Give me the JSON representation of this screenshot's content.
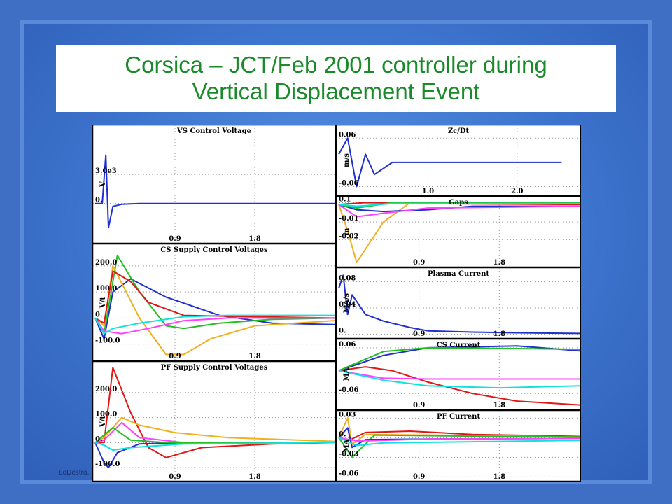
{
  "slide": {
    "title_line1": "Corsica – JCT/Feb 2001 controller during",
    "title_line2": "Vertical Displacement Event",
    "footer": "LoDestro,",
    "colors": {
      "background": "#3f6fc4",
      "title": "#1a8a2a"
    }
  },
  "chart_data": [
    {
      "type": "line",
      "title": "VS Control Voltage",
      "ylabel": "V",
      "xticks": [
        "0.9",
        "1.8"
      ],
      "yticks": [
        "3.0e3",
        "0."
      ],
      "series": [
        {
          "color": "#1f2fd0",
          "x": [
            0,
            0.08,
            0.12,
            0.15,
            0.2,
            0.3,
            0.5,
            1.0,
            2.7
          ],
          "y": [
            0,
            0,
            5000,
            -2500,
            -300,
            -80,
            0,
            0,
            0
          ]
        }
      ]
    },
    {
      "type": "line",
      "title": "CS Supply Control Voltages",
      "ylabel": "V/t",
      "xticks": [
        "0.9",
        "1.8"
      ],
      "yticks": [
        "200.0",
        "100.0",
        "0.",
        "-100.0"
      ],
      "series": [
        {
          "color": "#1f2fd0",
          "x": [
            0,
            0.1,
            0.2,
            0.4,
            0.8,
            1.4,
            2.0,
            2.7
          ],
          "y": [
            0,
            -80,
            100,
            150,
            80,
            10,
            -20,
            -25
          ]
        },
        {
          "color": "#22c022",
          "x": [
            0,
            0.1,
            0.25,
            0.5,
            0.8,
            1.0,
            1.4,
            2.0,
            2.7
          ],
          "y": [
            0,
            -60,
            240,
            100,
            -30,
            -40,
            -20,
            -5,
            0
          ]
        },
        {
          "color": "#f0b020",
          "x": [
            0,
            0.1,
            0.2,
            0.5,
            0.8,
            1.0,
            1.3,
            1.8,
            2.7
          ],
          "y": [
            0,
            -30,
            200,
            0,
            -140,
            -140,
            -80,
            -30,
            -10
          ]
        },
        {
          "color": "#e01818",
          "x": [
            0,
            0.1,
            0.2,
            0.4,
            0.6,
            1.0,
            2.7
          ],
          "y": [
            0,
            -20,
            180,
            140,
            60,
            10,
            0
          ]
        },
        {
          "color": "#ff40ff",
          "x": [
            0,
            0.1,
            0.3,
            0.6,
            1.0,
            1.5,
            2.7
          ],
          "y": [
            0,
            -50,
            -60,
            -40,
            -10,
            0,
            0
          ]
        },
        {
          "color": "#10e0e0",
          "x": [
            0,
            0.1,
            0.2,
            0.5,
            1.0,
            1.5,
            2.7
          ],
          "y": [
            0,
            -60,
            -40,
            -20,
            5,
            10,
            10
          ]
        }
      ]
    },
    {
      "type": "line",
      "title": "PF Supply Control Voltages",
      "ylabel": "V/t",
      "xticks": [
        "0.9",
        "1.8"
      ],
      "yticks": [
        "200.0",
        "100.0",
        "0.",
        "-100.0"
      ],
      "series": [
        {
          "color": "#e01818",
          "x": [
            0,
            0.1,
            0.2,
            0.4,
            0.6,
            0.8,
            1.2,
            2.0,
            2.7
          ],
          "y": [
            0,
            0,
            300,
            120,
            -20,
            -60,
            -20,
            -5,
            0
          ]
        },
        {
          "color": "#f0b020",
          "x": [
            0,
            0.1,
            0.3,
            0.5,
            0.9,
            1.5,
            2.7
          ],
          "y": [
            0,
            20,
            100,
            70,
            40,
            20,
            5
          ]
        },
        {
          "color": "#ff40ff",
          "x": [
            0,
            0.1,
            0.3,
            0.5,
            1.0,
            2.7
          ],
          "y": [
            0,
            10,
            80,
            20,
            0,
            0
          ]
        },
        {
          "color": "#1f2fd0",
          "x": [
            0,
            0.1,
            0.15,
            0.25,
            0.5,
            1.0,
            2.7
          ],
          "y": [
            0,
            -80,
            -100,
            -40,
            -5,
            0,
            0
          ]
        },
        {
          "color": "#22c022",
          "x": [
            0,
            0.1,
            0.2,
            0.4,
            0.8,
            1.5,
            2.7
          ],
          "y": [
            0,
            30,
            60,
            10,
            0,
            0,
            0
          ]
        },
        {
          "color": "#10e0e0",
          "x": [
            0,
            0.1,
            0.2,
            0.4,
            1.0,
            2.7
          ],
          "y": [
            0,
            -10,
            -30,
            -20,
            -5,
            0
          ]
        }
      ]
    },
    {
      "type": "line",
      "title": "Zc/Dt",
      "ylabel": "m/s",
      "xticks": [
        "1.0",
        "2.0"
      ],
      "yticks": [
        "0.06",
        "-0.06"
      ],
      "series": [
        {
          "color": "#1f2fd0",
          "x": [
            0,
            0.1,
            0.2,
            0.3,
            0.4,
            0.6,
            1.0,
            2.0,
            2.5
          ],
          "y": [
            0.02,
            0.06,
            -0.06,
            0.02,
            -0.03,
            0,
            0,
            0,
            0
          ]
        }
      ]
    },
    {
      "type": "line",
      "title": "Gaps",
      "ylabel": "m",
      "xticks": [
        "0.9",
        "1.8"
      ],
      "yticks": [
        "0.1",
        "-0.01",
        "-0.02"
      ],
      "series": [
        {
          "color": "#f0b020",
          "x": [
            0,
            0.1,
            0.2,
            0.5,
            0.8,
            1.2,
            2.7
          ],
          "y": [
            0,
            -0.015,
            -0.033,
            -0.01,
            0.001,
            0.001,
            0.001
          ]
        },
        {
          "color": "#1f2fd0",
          "x": [
            0,
            0.2,
            0.5,
            1.0,
            1.5,
            2.7
          ],
          "y": [
            0,
            -0.003,
            -0.004,
            -0.003,
            -0.001,
            -0.001
          ]
        },
        {
          "color": "#ff40ff",
          "x": [
            0,
            0.2,
            0.5,
            1.0,
            2.7
          ],
          "y": [
            0,
            -0.007,
            -0.005,
            -0.002,
            -0.001
          ]
        },
        {
          "color": "#e01818",
          "x": [
            0,
            0.3,
            1.0,
            2.7
          ],
          "y": [
            0,
            0.001,
            0.0005,
            0
          ]
        },
        {
          "color": "#22c022",
          "x": [
            0,
            0.2,
            0.6,
            1.0,
            2.7
          ],
          "y": [
            0,
            -0.002,
            0.001,
            0.0012,
            0.0012
          ]
        },
        {
          "color": "#10e0e0",
          "x": [
            0,
            0.2,
            0.6,
            2.7
          ],
          "y": [
            0,
            -0.001,
            0.0005,
            0.0005
          ]
        }
      ]
    },
    {
      "type": "line",
      "title": "Plasma Current",
      "ylabel": "MA/s",
      "xticks": [
        "0.9",
        "1.8"
      ],
      "yticks": [
        "0.08",
        "0.04",
        "0."
      ],
      "series": [
        {
          "color": "#1f2fd0",
          "x": [
            0,
            0.05,
            0.1,
            0.15,
            0.3,
            0.5,
            0.8,
            1.0,
            1.5,
            2.0,
            2.7
          ],
          "y": [
            0.07,
            0.09,
            0.03,
            0.06,
            0.03,
            0.02,
            0.01,
            0.005,
            0.003,
            0.002,
            0.001
          ]
        }
      ]
    },
    {
      "type": "line",
      "title": "CS Current",
      "ylabel": "MA",
      "xticks": [
        "0.9",
        "1.8"
      ],
      "yticks": [
        "0.06",
        "-0.06"
      ],
      "series": [
        {
          "color": "#1f2fd0",
          "x": [
            0,
            0.5,
            1.0,
            2.0,
            2.7
          ],
          "y": [
            0,
            0.04,
            0.06,
            0.065,
            0.052
          ]
        },
        {
          "color": "#22c022",
          "x": [
            0,
            0.5,
            1.0,
            2.0,
            2.7
          ],
          "y": [
            0,
            0.05,
            0.06,
            0.058,
            0.056
          ]
        },
        {
          "color": "#e01818",
          "x": [
            0,
            0.3,
            0.6,
            1.0,
            1.5,
            2.0,
            2.7
          ],
          "y": [
            0,
            0.01,
            0,
            -0.03,
            -0.06,
            -0.08,
            -0.09
          ]
        },
        {
          "color": "#ff40ff",
          "x": [
            0,
            0.5,
            1.0,
            2.7
          ],
          "y": [
            0,
            -0.02,
            -0.022,
            -0.022
          ]
        },
        {
          "color": "#10e0e0",
          "x": [
            0,
            0.5,
            1.0,
            1.8,
            2.7
          ],
          "y": [
            0,
            -0.025,
            -0.04,
            -0.045,
            -0.04
          ]
        }
      ]
    },
    {
      "type": "line",
      "title": "PF Current",
      "ylabel": "MA",
      "xticks": [
        "0.9",
        "1.8"
      ],
      "yticks": [
        "0.03",
        "0.",
        "-0.03",
        "-0.06"
      ],
      "series": [
        {
          "color": "#e01818",
          "x": [
            0,
            0.1,
            0.3,
            0.8,
            1.5,
            2.7
          ],
          "y": [
            0,
            -0.005,
            0.008,
            0.01,
            0.005,
            0.002
          ]
        },
        {
          "color": "#f0b020",
          "x": [
            0,
            0.1,
            0.15,
            0.3,
            1.0,
            2.7
          ],
          "y": [
            0,
            0.03,
            -0.01,
            0.005,
            0.004,
            0.001
          ]
        },
        {
          "color": "#22c022",
          "x": [
            0,
            0.1,
            0.15,
            0.4,
            1.0,
            2.7
          ],
          "y": [
            0,
            -0.02,
            -0.03,
            0.004,
            0.003,
            0.001
          ]
        },
        {
          "color": "#1f2fd0",
          "x": [
            0,
            0.1,
            0.15,
            0.3,
            1.0,
            2.7
          ],
          "y": [
            0,
            0.015,
            -0.015,
            -0.003,
            -0.002,
            -0.001
          ]
        },
        {
          "color": "#ff40ff",
          "x": [
            0,
            0.2,
            0.5,
            1.0,
            2.7
          ],
          "y": [
            0,
            -0.005,
            -0.004,
            -0.002,
            -0.001
          ]
        },
        {
          "color": "#10e0e0",
          "x": [
            0,
            0.2,
            0.5,
            2.7
          ],
          "y": [
            0,
            -0.012,
            -0.008,
            -0.004
          ]
        }
      ]
    }
  ]
}
